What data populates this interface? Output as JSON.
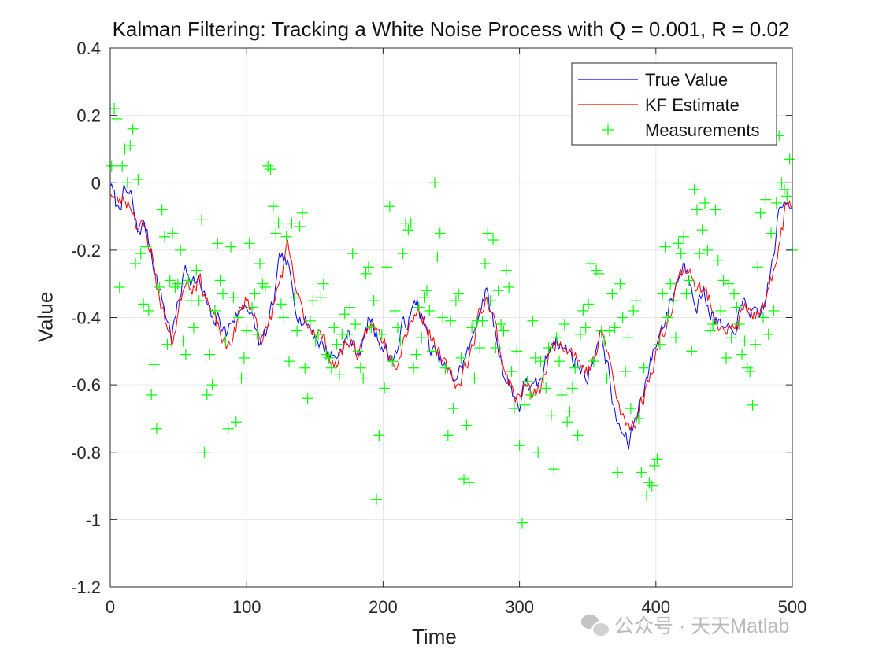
{
  "chart_data": {
    "type": "line",
    "title": "Kalman Filtering: Tracking a White Noise Process with Q = 0.001, R = 0.02",
    "xlabel": "Time",
    "ylabel": "Value",
    "xlim": [
      0,
      500
    ],
    "ylim": [
      -1.2,
      0.4
    ],
    "xticks": [
      0,
      100,
      200,
      300,
      400,
      500
    ],
    "xtick_labels": [
      "0",
      "100",
      "200",
      "300",
      "400",
      "500"
    ],
    "yticks": [
      0.4,
      0.2,
      0,
      -0.2,
      -0.4,
      -0.6,
      -0.8,
      -1,
      -1.2
    ],
    "ytick_labels": [
      "0.4",
      "0.2",
      "0",
      "-0.2",
      "-0.4",
      "-0.6",
      "-0.8",
      "-1",
      "-1.2"
    ],
    "grid": true,
    "legend_position": "top-right",
    "series": [
      {
        "name": "True Value",
        "color": "#0000ff",
        "style": "line",
        "keypoints_x": [
          0,
          5,
          10,
          15,
          20,
          25,
          30,
          35,
          40,
          45,
          50,
          55,
          60,
          65,
          70,
          75,
          80,
          85,
          90,
          95,
          100,
          105,
          110,
          115,
          120,
          125,
          130,
          135,
          140,
          145,
          150,
          155,
          160,
          165,
          170,
          175,
          180,
          185,
          190,
          195,
          200,
          205,
          210,
          215,
          220,
          225,
          230,
          235,
          240,
          245,
          250,
          255,
          260,
          265,
          270,
          275,
          280,
          285,
          290,
          295,
          300,
          305,
          310,
          315,
          320,
          325,
          330,
          335,
          340,
          345,
          350,
          355,
          360,
          365,
          370,
          375,
          380,
          385,
          390,
          395,
          400,
          405,
          410,
          415,
          420,
          425,
          430,
          435,
          440,
          445,
          450,
          455,
          460,
          465,
          470,
          475,
          480,
          485,
          490,
          495,
          500
        ],
        "keypoints_y": [
          0.0,
          -0.08,
          -0.03,
          -0.04,
          -0.15,
          -0.12,
          -0.2,
          -0.3,
          -0.38,
          -0.45,
          -0.36,
          -0.25,
          -0.28,
          -0.3,
          -0.35,
          -0.42,
          -0.4,
          -0.45,
          -0.4,
          -0.38,
          -0.35,
          -0.42,
          -0.48,
          -0.44,
          -0.35,
          -0.22,
          -0.25,
          -0.35,
          -0.4,
          -0.42,
          -0.45,
          -0.48,
          -0.5,
          -0.52,
          -0.48,
          -0.45,
          -0.5,
          -0.48,
          -0.4,
          -0.45,
          -0.48,
          -0.52,
          -0.5,
          -0.42,
          -0.4,
          -0.35,
          -0.42,
          -0.5,
          -0.52,
          -0.55,
          -0.58,
          -0.57,
          -0.52,
          -0.48,
          -0.38,
          -0.32,
          -0.4,
          -0.5,
          -0.58,
          -0.62,
          -0.66,
          -0.58,
          -0.62,
          -0.6,
          -0.52,
          -0.45,
          -0.48,
          -0.5,
          -0.52,
          -0.55,
          -0.58,
          -0.5,
          -0.45,
          -0.55,
          -0.7,
          -0.74,
          -0.78,
          -0.7,
          -0.62,
          -0.55,
          -0.48,
          -0.42,
          -0.36,
          -0.3,
          -0.24,
          -0.28,
          -0.35,
          -0.33,
          -0.38,
          -0.42,
          -0.44,
          -0.46,
          -0.4,
          -0.36,
          -0.38,
          -0.42,
          -0.35,
          -0.25,
          -0.1,
          -0.05,
          -0.05
        ],
        "seed": 7
      },
      {
        "name": "KF Estimate",
        "color": "#ff0000",
        "style": "line",
        "keypoints_x": [
          0,
          5,
          10,
          15,
          20,
          25,
          30,
          35,
          40,
          45,
          50,
          55,
          60,
          65,
          70,
          75,
          80,
          85,
          90,
          95,
          100,
          105,
          110,
          115,
          120,
          125,
          130,
          135,
          140,
          145,
          150,
          155,
          160,
          165,
          170,
          175,
          180,
          185,
          190,
          195,
          200,
          205,
          210,
          215,
          220,
          225,
          230,
          235,
          240,
          245,
          250,
          255,
          260,
          265,
          270,
          275,
          280,
          285,
          290,
          295,
          300,
          305,
          310,
          315,
          320,
          325,
          330,
          335,
          340,
          345,
          350,
          355,
          360,
          365,
          370,
          375,
          380,
          385,
          390,
          395,
          400,
          405,
          410,
          415,
          420,
          425,
          430,
          435,
          440,
          445,
          450,
          455,
          460,
          465,
          470,
          475,
          480,
          485,
          490,
          495,
          500
        ],
        "keypoints_y": [
          -0.02,
          -0.06,
          -0.05,
          -0.06,
          -0.12,
          -0.14,
          -0.2,
          -0.32,
          -0.4,
          -0.48,
          -0.38,
          -0.28,
          -0.3,
          -0.28,
          -0.33,
          -0.4,
          -0.44,
          -0.5,
          -0.45,
          -0.4,
          -0.34,
          -0.38,
          -0.45,
          -0.45,
          -0.36,
          -0.28,
          -0.2,
          -0.3,
          -0.38,
          -0.42,
          -0.43,
          -0.46,
          -0.5,
          -0.55,
          -0.5,
          -0.46,
          -0.5,
          -0.5,
          -0.42,
          -0.44,
          -0.46,
          -0.5,
          -0.52,
          -0.46,
          -0.4,
          -0.38,
          -0.4,
          -0.45,
          -0.5,
          -0.55,
          -0.58,
          -0.6,
          -0.54,
          -0.5,
          -0.4,
          -0.34,
          -0.38,
          -0.48,
          -0.56,
          -0.62,
          -0.64,
          -0.6,
          -0.64,
          -0.62,
          -0.54,
          -0.48,
          -0.46,
          -0.48,
          -0.5,
          -0.54,
          -0.56,
          -0.52,
          -0.45,
          -0.5,
          -0.62,
          -0.7,
          -0.72,
          -0.7,
          -0.65,
          -0.58,
          -0.5,
          -0.45,
          -0.38,
          -0.3,
          -0.26,
          -0.25,
          -0.32,
          -0.32,
          -0.36,
          -0.4,
          -0.42,
          -0.44,
          -0.42,
          -0.38,
          -0.38,
          -0.4,
          -0.38,
          -0.3,
          -0.18,
          -0.08,
          -0.06
        ],
        "seed": 23
      },
      {
        "name": "Measurements",
        "color": "#00ff00",
        "style": "markers",
        "marker": "+",
        "points_y": [
          0.05,
          0.22,
          0.19,
          -0.31,
          0.05,
          0.1,
          0.0,
          0.11,
          0.16,
          -0.24,
          0.01,
          -0.21,
          -0.36,
          -0.19,
          -0.38,
          -0.63,
          -0.54,
          -0.73,
          -0.31,
          -0.08,
          -0.16,
          -0.48,
          -0.29,
          -0.15,
          -0.31,
          -0.3,
          -0.2,
          -0.47,
          -0.51,
          -0.29,
          -0.35,
          -0.43,
          -0.26,
          -0.35,
          -0.11,
          -0.8,
          -0.63,
          -0.51,
          -0.6,
          -0.38,
          -0.18,
          -0.29,
          -0.33,
          -0.47,
          -0.73,
          -0.19,
          -0.34,
          -0.71,
          -0.4,
          -0.58,
          -0.52,
          -0.44,
          -0.18,
          -0.37,
          -0.33,
          -0.45,
          -0.24,
          -0.3,
          -0.31,
          0.05,
          0.04,
          -0.07,
          -0.15,
          -0.12,
          -0.36,
          -0.4,
          -0.16,
          -0.53,
          -0.12,
          -0.34,
          -0.44,
          -0.13,
          -0.09,
          -0.55,
          -0.64,
          -0.41,
          -0.35,
          -0.47,
          -0.45,
          -0.34,
          -0.3,
          -0.51,
          -0.52,
          -0.55,
          -0.43,
          -0.48,
          -0.57,
          -0.45,
          -0.39,
          -0.45,
          -0.37,
          -0.21,
          -0.42,
          -0.5,
          -0.55,
          -0.58,
          -0.27,
          -0.25,
          -0.43,
          -0.35,
          -0.94,
          -0.75,
          -0.45,
          -0.61,
          -0.25,
          -0.07,
          -0.53,
          -0.38,
          -0.43,
          -0.47,
          -0.21,
          -0.12,
          -0.14,
          -0.12,
          -0.55,
          -0.51,
          -0.37,
          -0.46,
          -0.34,
          -0.32,
          -0.38,
          -0.5,
          0.0,
          -0.22,
          -0.15,
          -0.4,
          -0.55,
          -0.75,
          -0.41,
          -0.67,
          -0.35,
          -0.33,
          -0.52,
          -0.88,
          -0.72,
          -0.89,
          -0.43,
          -0.58,
          -0.41,
          -0.49,
          -0.41,
          -0.24,
          -0.15,
          -0.35,
          -0.17,
          -0.49,
          -0.32,
          -0.42,
          -0.44,
          -0.26,
          -0.31,
          -0.56,
          -0.67,
          -0.5,
          -0.78,
          -1.01,
          -0.66,
          -0.59,
          -0.63,
          -0.41,
          -0.52,
          -0.8,
          -0.53,
          -0.58,
          -0.61,
          -0.49,
          -0.69,
          -0.85,
          -0.46,
          -0.53,
          -0.63,
          -0.42,
          -0.71,
          -0.68,
          -0.61,
          -0.55,
          -0.75,
          -0.45,
          -0.38,
          -0.43,
          -0.36,
          -0.24,
          -0.53,
          -0.26,
          -0.27,
          -0.44,
          -0.47,
          -0.58,
          -0.44,
          -0.33,
          -0.43,
          -0.86,
          -0.3,
          -0.4,
          -0.56,
          -0.46,
          -0.67,
          -0.38,
          -0.35,
          -0.7,
          -0.86,
          -0.55,
          -0.93,
          -0.89,
          -0.9,
          -0.84,
          -0.82,
          -0.48,
          -0.33,
          -0.19,
          -0.4,
          -0.3,
          -0.35,
          -0.46,
          -0.18,
          -0.21,
          -0.16,
          -0.33,
          -0.29,
          -0.5,
          -0.02,
          -0.08,
          -0.21,
          -0.14,
          -0.06,
          -0.2,
          -0.44,
          -0.42,
          -0.08,
          -0.23,
          -0.38,
          -0.29,
          -0.52,
          -0.3,
          -0.46,
          -0.33,
          -0.37,
          -0.42,
          -0.51,
          -0.47,
          -0.55,
          -0.56,
          -0.66,
          -0.48,
          -0.25,
          -0.09,
          -0.4,
          -0.05,
          -0.45,
          -0.15,
          -0.38,
          -0.06,
          0.14,
          0.0,
          -0.02,
          -0.04,
          0.07,
          -0.2
        ],
        "seed": 41
      }
    ]
  },
  "watermark": {
    "text": "公众号 · 天天Matlab"
  }
}
